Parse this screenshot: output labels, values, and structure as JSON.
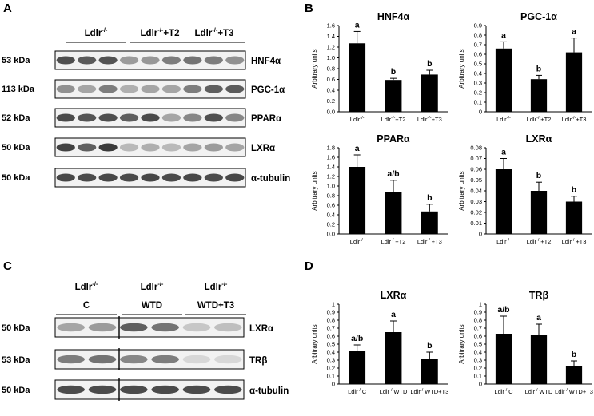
{
  "panel_letters": [
    "A",
    "B",
    "C",
    "D"
  ],
  "panel_A": {
    "groups": [
      {
        "base": "Ldlr",
        "sup": "-/-",
        "suffix": ""
      },
      {
        "base": "Ldlr",
        "sup": "-/-",
        "suffix": "+T2"
      },
      {
        "base": "Ldlr",
        "sup": "-/-",
        "suffix": "+T3"
      }
    ],
    "rows": [
      {
        "kda": "53 kDa",
        "protein": "HNF4α",
        "darkness": [
          0.78,
          0.72,
          0.76,
          0.4,
          0.42,
          0.55,
          0.6,
          0.55,
          0.45
        ]
      },
      {
        "kda": "113 kDa",
        "protein": "PGC-1α",
        "darkness": [
          0.45,
          0.35,
          0.55,
          0.3,
          0.35,
          0.35,
          0.55,
          0.7,
          0.72
        ]
      },
      {
        "kda": "52 kDa",
        "protein": "PPARα",
        "darkness": [
          0.8,
          0.75,
          0.78,
          0.7,
          0.8,
          0.35,
          0.5,
          0.78,
          0.5
        ]
      },
      {
        "kda": "50 kDa",
        "protein": "LXRα",
        "darkness": [
          0.85,
          0.7,
          0.88,
          0.25,
          0.3,
          0.25,
          0.35,
          0.4,
          0.35
        ]
      },
      {
        "kda": "50 kDa",
        "protein": "α-tubulin",
        "darkness": [
          0.82,
          0.8,
          0.82,
          0.8,
          0.82,
          0.8,
          0.82,
          0.8,
          0.82
        ]
      }
    ]
  },
  "panel_C": {
    "groups": [
      {
        "base": "Ldlr",
        "sup": "-/-",
        "sub": "C"
      },
      {
        "base": "Ldlr",
        "sup": "-/-",
        "sub": "WTD"
      },
      {
        "base": "Ldlr",
        "sup": "-/-",
        "sub": "WTD+T3"
      }
    ],
    "rows": [
      {
        "kda": "50 kDa",
        "protein": "LXRα",
        "darkness": [
          0.35,
          0.4,
          0.7,
          0.6,
          0.18,
          0.22
        ]
      },
      {
        "kda": "53 kDa",
        "protein": "TRβ",
        "darkness": [
          0.55,
          0.6,
          0.5,
          0.55,
          0.1,
          0.1
        ]
      },
      {
        "kda": "50 kDa",
        "protein": "α-tubulin",
        "darkness": [
          0.8,
          0.8,
          0.8,
          0.8,
          0.8,
          0.8
        ]
      }
    ]
  },
  "bar_color": "#000000",
  "chart_data": [
    {
      "type": "bar",
      "panel": "B",
      "title": "HNF4α",
      "ylabel": "Arbitrary units",
      "ylim": [
        0,
        1.6
      ],
      "yticks": [
        "0.0",
        "0.2",
        "0.4",
        "0.6",
        "0.8",
        "1.0",
        "1.2",
        "1.4",
        "1.6"
      ],
      "categories": [
        "Ldlr-/-",
        "Ldlr-/-+T2",
        "Ldlr-/-+T3"
      ],
      "values": [
        1.27,
        0.59,
        0.69
      ],
      "errors": [
        0.22,
        0.03,
        0.08
      ],
      "letters": [
        "a",
        "b",
        "b"
      ]
    },
    {
      "type": "bar",
      "panel": "B",
      "title": "PGC-1α",
      "ylabel": "Arbitrary units",
      "ylim": [
        0,
        0.9
      ],
      "yticks": [
        "0",
        "0.1",
        "0.2",
        "0.3",
        "0.4",
        "0.5",
        "0.6",
        "0.7",
        "0.8",
        "0.9"
      ],
      "categories": [
        "Ldlr-/-",
        "Ldlr-/-+T2",
        "Ldlr-/-+T3"
      ],
      "values": [
        0.66,
        0.34,
        0.62
      ],
      "errors": [
        0.07,
        0.04,
        0.15
      ],
      "letters": [
        "a",
        "b",
        "a"
      ]
    },
    {
      "type": "bar",
      "panel": "B",
      "title": "PPARα",
      "ylabel": "Arbitrary units",
      "ylim": [
        0,
        1.8
      ],
      "yticks": [
        "0.0",
        "0.2",
        "0.4",
        "0.6",
        "0.8",
        "1.0",
        "1.2",
        "1.4",
        "1.6",
        "1.8"
      ],
      "categories": [
        "Ldlr-/-",
        "Ldlr-/-+T2",
        "Ldlr-/-+T3"
      ],
      "values": [
        1.4,
        0.87,
        0.47
      ],
      "errors": [
        0.25,
        0.25,
        0.15
      ],
      "letters": [
        "a",
        "a/b",
        "b"
      ]
    },
    {
      "type": "bar",
      "panel": "B",
      "title": "LXRα",
      "ylabel": "Arbitrary units",
      "ylim": [
        0,
        0.08
      ],
      "yticks": [
        "0",
        "0.01",
        "0.02",
        "0.03",
        "0.04",
        "0.05",
        "0.06",
        "0.07",
        "0.08"
      ],
      "categories": [
        "Ldlr-/-",
        "Ldlr-/-+T2",
        "Ldlr-/-+T3"
      ],
      "values": [
        0.06,
        0.04,
        0.03
      ],
      "errors": [
        0.01,
        0.008,
        0.005
      ],
      "letters": [
        "a",
        "b",
        "b"
      ]
    },
    {
      "type": "bar",
      "panel": "D",
      "title": "LXRα",
      "ylabel": "Arbitrary units",
      "ylim": [
        0,
        1.0
      ],
      "yticks": [
        "0",
        "0.1",
        "0.2",
        "0.3",
        "0.4",
        "0.5",
        "0.6",
        "0.7",
        "0.8",
        "0.9",
        "1"
      ],
      "categories": [
        "Ldlr-/-C",
        "Ldlr-/- WTD",
        "Ldlr-/- WTD+T3"
      ],
      "values": [
        0.42,
        0.65,
        0.31
      ],
      "errors": [
        0.07,
        0.14,
        0.09
      ],
      "letters": [
        "a/b",
        "a",
        "b"
      ]
    },
    {
      "type": "bar",
      "panel": "D",
      "title": "TRβ",
      "ylabel": "Arbitrary units",
      "ylim": [
        0,
        1.0
      ],
      "yticks": [
        "0",
        "0.1",
        "0.2",
        "0.3",
        "0.4",
        "0.5",
        "0.6",
        "0.7",
        "0.8",
        "0.9",
        "1"
      ],
      "categories": [
        "Ldlr-/-C",
        "Ldlr-/- WTD",
        "Ldlr-/- WTD+T3"
      ],
      "values": [
        0.63,
        0.61,
        0.22
      ],
      "errors": [
        0.22,
        0.14,
        0.07
      ],
      "letters": [
        "a/b",
        "a",
        "b"
      ]
    }
  ]
}
